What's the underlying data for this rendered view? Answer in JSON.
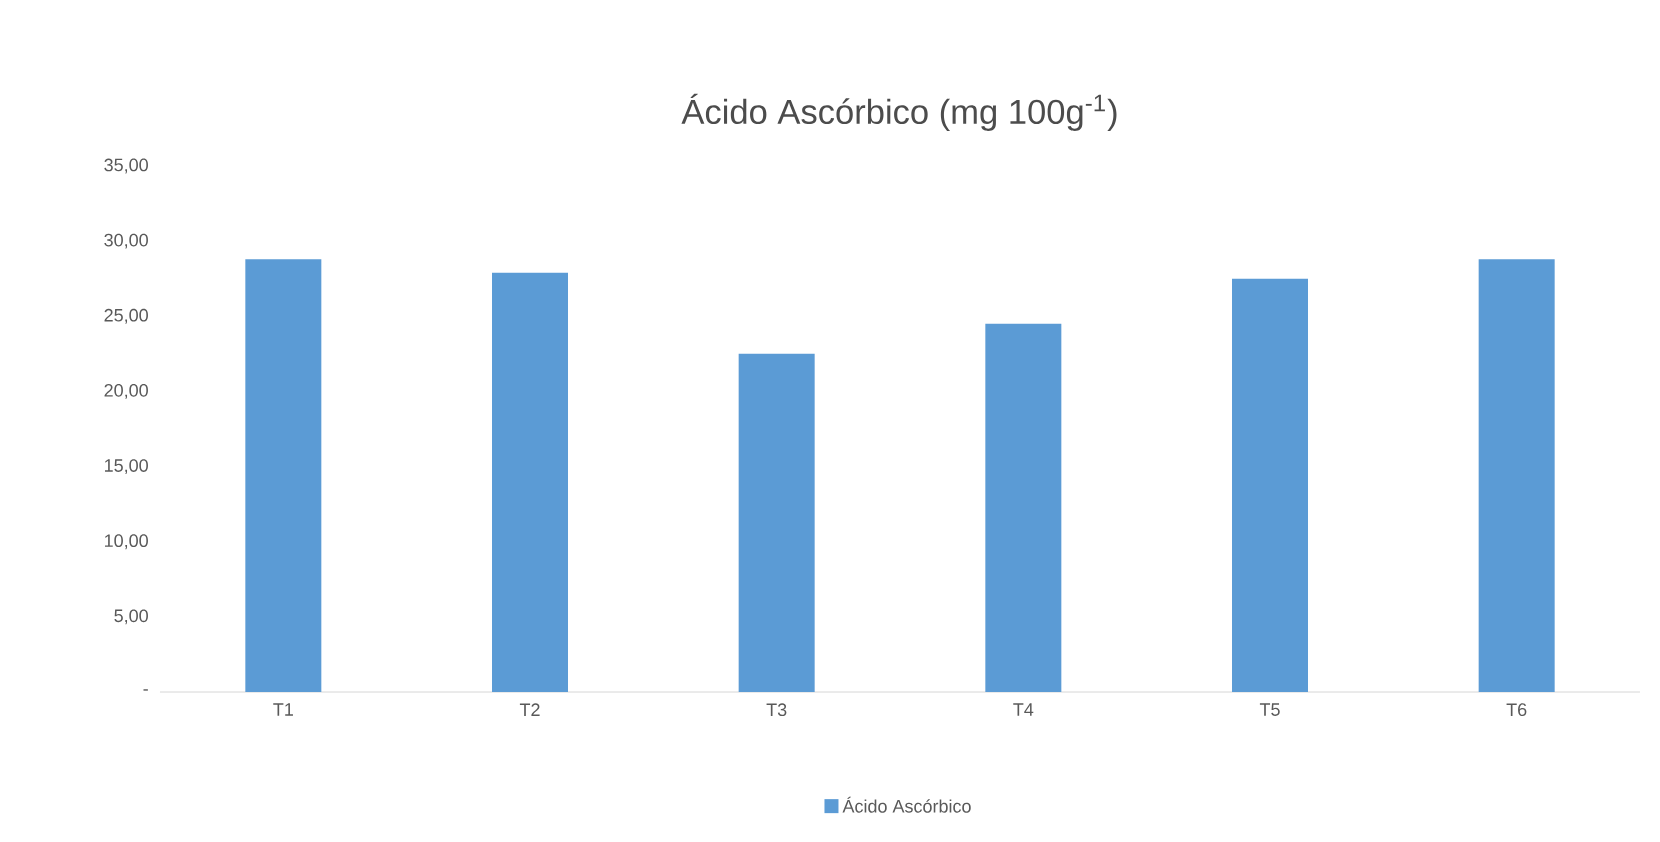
{
  "chart_data": {
    "type": "bar",
    "title": "Ácido Ascórbico (mg 100g$^{-1}$)",
    "categories": [
      "T1",
      "T2",
      "T3",
      "T4",
      "T5",
      "T6"
    ],
    "series": [
      {
        "name": "Ácido Ascórbico",
        "color": "#5b9bd5",
        "values": [
          28.8,
          27.9,
          22.5,
          24.5,
          27.5,
          28.8
        ]
      }
    ],
    "ylim": [
      0,
      35
    ],
    "yticks": [
      {
        "value": 0,
        "label": "-"
      },
      {
        "value": 5,
        "label": "5,00"
      },
      {
        "value": 10,
        "label": "10,00"
      },
      {
        "value": 15,
        "label": "15,00"
      },
      {
        "value": 20,
        "label": "20,00"
      },
      {
        "value": 25,
        "label": "25,00"
      },
      {
        "value": 30,
        "label": "30,00"
      },
      {
        "value": 35,
        "label": "35,00"
      }
    ],
    "grid": false,
    "legend": "bottom"
  }
}
